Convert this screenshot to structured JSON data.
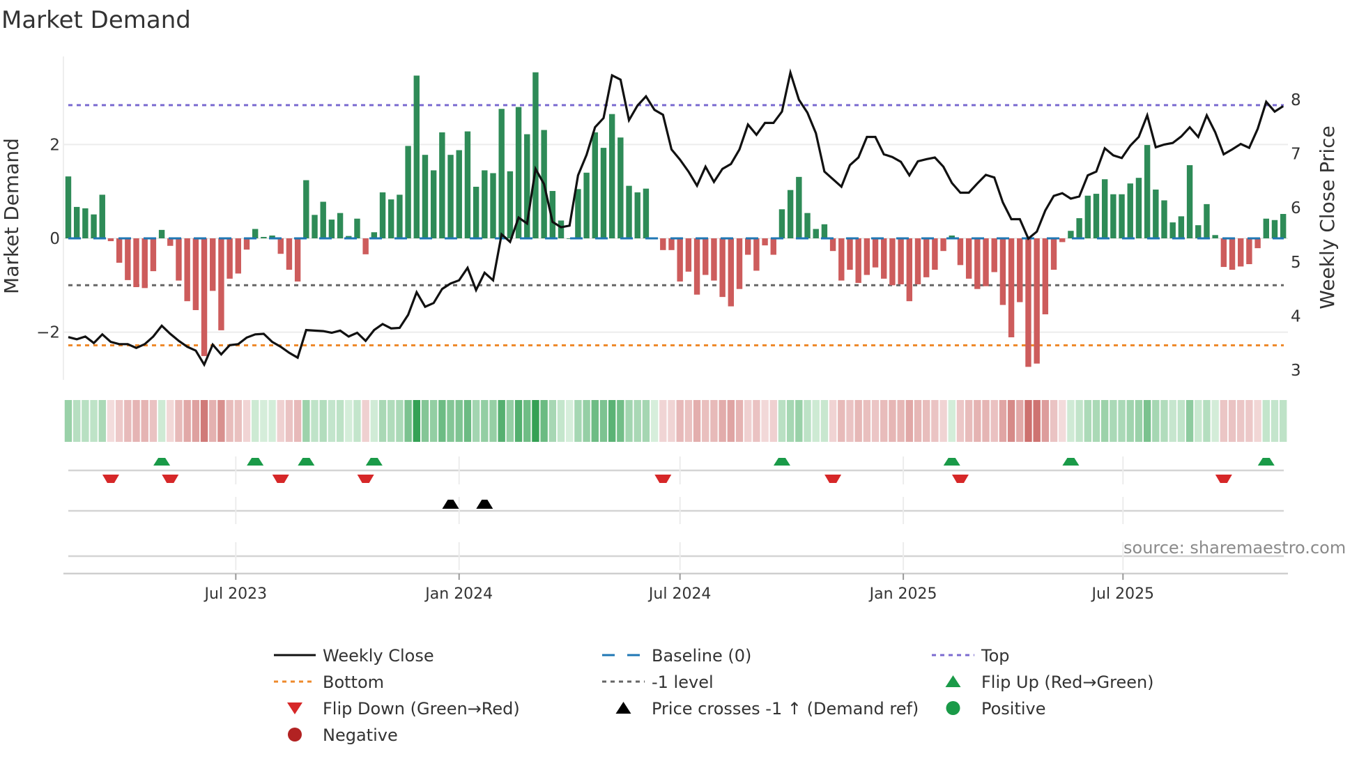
{
  "chart_data": {
    "type": "bar",
    "title": "Market Demand",
    "ylabel": "Market Demand",
    "y2label": "Weekly Close Price",
    "ylim": [
      -3.0,
      3.9
    ],
    "y2lim": [
      2.8,
      8.8
    ],
    "yticks": [
      {
        "value": 2,
        "label": "2"
      },
      {
        "value": 0,
        "label": "0"
      },
      {
        "value": -2,
        "label": "−2"
      }
    ],
    "y2ticks": [
      {
        "value": 3,
        "label": "3"
      },
      {
        "value": 4,
        "label": "4"
      },
      {
        "value": 5,
        "label": "5"
      },
      {
        "value": 6,
        "label": "6"
      },
      {
        "value": 7,
        "label": "7"
      },
      {
        "value": 8,
        "label": "8"
      }
    ],
    "x_start_week": "2023-02-13",
    "xticks": [
      {
        "date": "2023-07-01",
        "label": "Jul 2023"
      },
      {
        "date": "2024-01-01",
        "label": "Jan 2024"
      },
      {
        "date": "2024-07-01",
        "label": "Jul 2024"
      },
      {
        "date": "2025-01-01",
        "label": "Jan 2025"
      },
      {
        "date": "2025-07-01",
        "label": "Jul 2025"
      }
    ],
    "demand": [
      1.32,
      0.67,
      0.64,
      0.51,
      0.93,
      -0.06,
      -0.52,
      -0.89,
      -1.04,
      -1.06,
      -0.7,
      0.18,
      -0.16,
      -0.9,
      -1.34,
      -1.53,
      -2.51,
      -1.12,
      -1.96,
      -0.86,
      -0.75,
      -0.24,
      0.2,
      0.03,
      0.06,
      -0.33,
      -0.67,
      -0.92,
      1.24,
      0.5,
      0.78,
      0.4,
      0.54,
      0.05,
      0.42,
      -0.34,
      0.13,
      0.98,
      0.83,
      0.93,
      1.97,
      3.47,
      1.78,
      1.45,
      2.26,
      1.78,
      1.88,
      2.28,
      1.1,
      1.45,
      1.39,
      2.76,
      1.43,
      2.8,
      2.22,
      3.54,
      2.31,
      1.01,
      0.38,
      0,
      1.05,
      1.4,
      2.26,
      1.93,
      2.65,
      2.15,
      1.12,
      0.98,
      1.06,
      0,
      -0.25,
      -0.25,
      -0.92,
      -0.71,
      -1.2,
      -0.78,
      -0.9,
      -1.25,
      -1.45,
      -1.08,
      -0.35,
      -0.69,
      -0.15,
      -0.35,
      0.62,
      1.03,
      1.31,
      0.54,
      0.2,
      0.3,
      -0.27,
      -0.9,
      -0.67,
      -0.95,
      -0.78,
      -0.62,
      -0.86,
      -1.0,
      -0.98,
      -1.34,
      -0.98,
      -0.83,
      -0.67,
      -0.27,
      0.06,
      -0.57,
      -0.86,
      -1.08,
      -1.02,
      -0.72,
      -1.42,
      -2.11,
      -1.36,
      -2.74,
      -2.67,
      -1.62,
      -0.67,
      -0.08,
      0.16,
      0.43,
      0.91,
      0.95,
      1.26,
      0.94,
      0.94,
      1.17,
      1.29,
      1.99,
      1.04,
      0.81,
      0.34,
      0.47,
      1.56,
      0.28,
      0.73,
      0.07,
      -0.61,
      -0.67,
      -0.6,
      -0.55,
      -0.21,
      0.42,
      0.39,
      0.52
    ],
    "weekly_close": [
      3.61,
      3.57,
      3.62,
      3.5,
      3.66,
      3.52,
      3.48,
      3.48,
      3.41,
      3.48,
      3.62,
      3.82,
      3.67,
      3.54,
      3.43,
      3.36,
      3.1,
      3.47,
      3.29,
      3.46,
      3.48,
      3.6,
      3.66,
      3.67,
      3.52,
      3.43,
      3.32,
      3.23,
      3.74,
      3.73,
      3.72,
      3.69,
      3.73,
      3.62,
      3.69,
      3.54,
      3.74,
      3.85,
      3.77,
      3.78,
      4.02,
      4.44,
      4.17,
      4.24,
      4.5,
      4.6,
      4.66,
      4.89,
      4.48,
      4.8,
      4.66,
      5.51,
      5.37,
      5.82,
      5.71,
      6.72,
      6.44,
      5.74,
      5.64,
      5.67,
      6.6,
      6.98,
      7.49,
      7.66,
      8.45,
      8.37,
      7.62,
      7.89,
      8.06,
      7.81,
      7.72,
      7.08,
      6.89,
      6.67,
      6.41,
      6.76,
      6.48,
      6.72,
      6.81,
      7.08,
      7.54,
      7.35,
      7.57,
      7.57,
      7.78,
      8.5,
      8.0,
      7.76,
      7.38,
      6.67,
      6.53,
      6.39,
      6.79,
      6.93,
      7.31,
      7.31,
      6.99,
      6.94,
      6.85,
      6.6,
      6.86,
      6.9,
      6.93,
      6.76,
      6.46,
      6.28,
      6.28,
      6.45,
      6.61,
      6.56,
      6.1,
      5.79,
      5.79,
      5.43,
      5.56,
      5.95,
      6.22,
      6.27,
      6.17,
      6.21,
      6.6,
      6.67,
      7.1,
      6.97,
      6.92,
      7.15,
      7.31,
      7.71,
      7.12,
      7.17,
      7.2,
      7.32,
      7.49,
      7.31,
      7.71,
      7.4,
      6.99,
      7.08,
      7.18,
      7.11,
      7.46,
      7.96,
      7.78,
      7.88
    ],
    "levels": {
      "top": 2.84,
      "baseline": 0,
      "minus_one": -1,
      "bottom": -2.28
    },
    "flip_up_weeks": [
      11,
      22,
      28,
      36,
      84,
      104,
      118,
      141
    ],
    "flip_down_weeks": [
      5,
      12,
      25,
      35,
      70,
      90,
      105,
      136
    ],
    "price_cross_up_weeks": [
      45,
      49
    ],
    "legend": [
      {
        "label": "Weekly Close",
        "symbol": "line-solid",
        "color": "#111111"
      },
      {
        "label": "Baseline (0)",
        "symbol": "line-dash",
        "color": "#1f77b4"
      },
      {
        "label": "Top",
        "symbol": "line-dot",
        "color": "#7b6bd0"
      },
      {
        "label": "Bottom",
        "symbol": "line-dot",
        "color": "#ee8a2c"
      },
      {
        "label": "-1 level",
        "symbol": "line-dot",
        "color": "#666666"
      },
      {
        "label": "Flip Up (Red→Green)",
        "symbol": "triangle-up",
        "color": "#1a9a48"
      },
      {
        "label": "Flip Down (Green→Red)",
        "symbol": "triangle-down",
        "color": "#d62728"
      },
      {
        "label": "Price crosses -1 ↑ (Demand ref)",
        "symbol": "triangle-up",
        "color": "#000000"
      },
      {
        "label": "Positive",
        "symbol": "circle",
        "color": "#1a9a48"
      },
      {
        "label": "Negative",
        "symbol": "circle",
        "color": "#b22222"
      }
    ],
    "legend_position": "bottom",
    "colors": {
      "positive_bar": "#2e8b57",
      "negative_bar": "#cd5c5c"
    }
  },
  "source": "source: sharemaestro.com"
}
